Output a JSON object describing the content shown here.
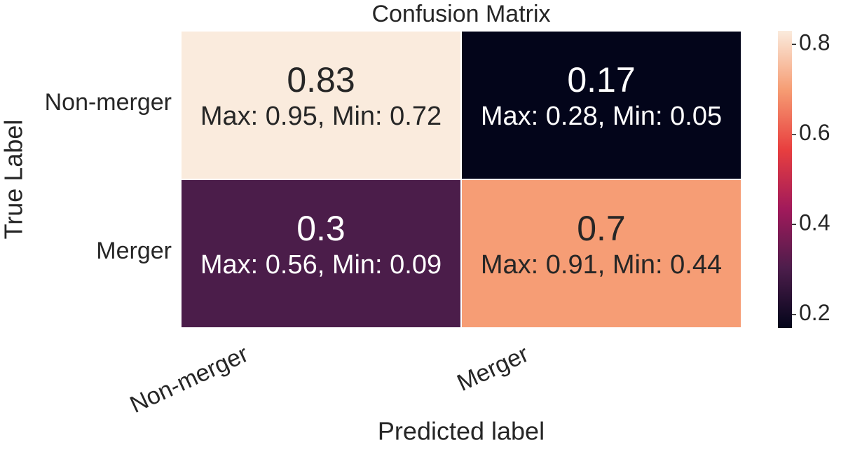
{
  "chart_data": {
    "type": "heatmap",
    "title": "Confusion Matrix",
    "x_label": "Predicted label",
    "y_label": "True Label",
    "x_categories": [
      "Non-merger",
      "Merger"
    ],
    "y_categories": [
      "Non-merger",
      "Merger"
    ],
    "values": [
      [
        0.83,
        0.17
      ],
      [
        0.3,
        0.7
      ]
    ],
    "annotations": [
      [
        "Max: 0.95, Min: 0.72",
        "Max: 0.28, Min: 0.05"
      ],
      [
        "Max: 0.56, Min: 0.09",
        "Max: 0.91, Min: 0.44"
      ]
    ],
    "clim": [
      0.17,
      0.83
    ],
    "cticks": [
      0.2,
      0.4,
      0.6,
      0.8
    ],
    "colormap": [
      "#03051a",
      "#4c1d4b",
      "#a11a5b",
      "#e83f3f",
      "#f69c73",
      "#faebdd"
    ]
  }
}
